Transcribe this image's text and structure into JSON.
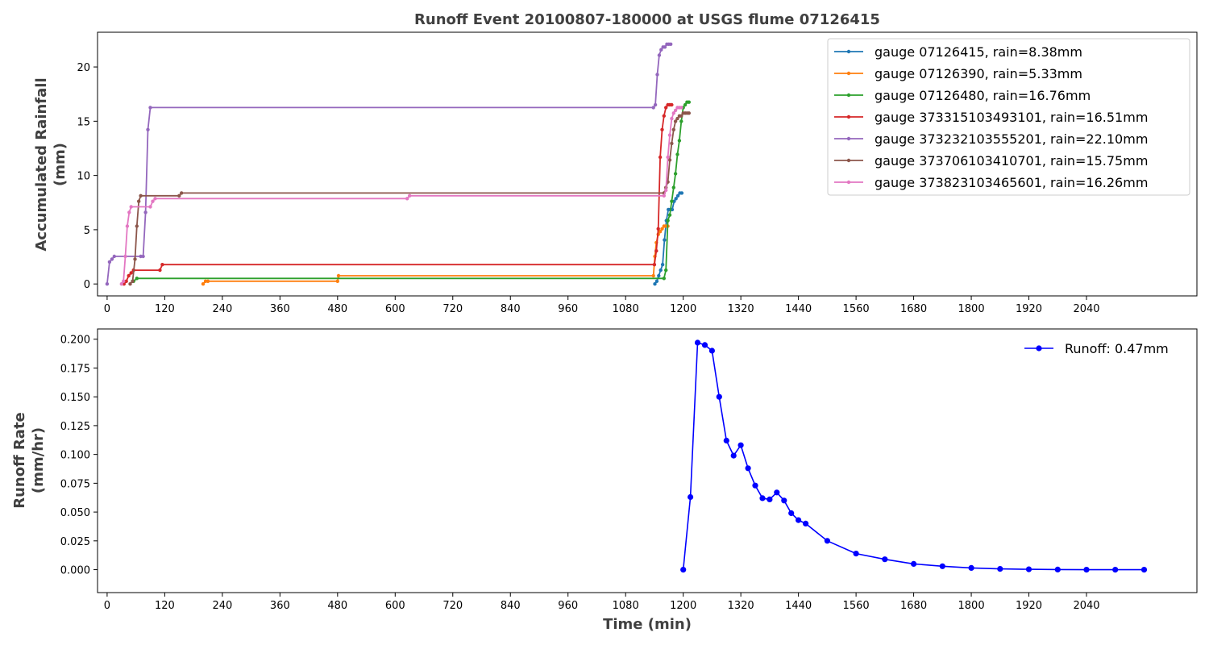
{
  "chart_data": [
    {
      "type": "line",
      "title": "Runoff Event 20100807-180000 at USGS flume 07126415",
      "ylabel_line1": "Accumulated Rainfall",
      "ylabel_line2": "(mm)",
      "xlim": [
        -20,
        2270
      ],
      "ylim": [
        -1.1,
        23.2
      ],
      "xticks": [
        0,
        120,
        240,
        360,
        480,
        600,
        720,
        840,
        960,
        1080,
        1200,
        1320,
        1440,
        1560,
        1680,
        1800,
        1920,
        2040
      ],
      "yticks": [
        0,
        5,
        10,
        15,
        20
      ],
      "legend_position": "top-right",
      "series": [
        {
          "name": "gauge 07126415, rain=8.38mm",
          "color": "#1f77b4",
          "points": [
            [
              1141,
              0
            ],
            [
              1145,
              0.25
            ],
            [
              1149,
              0.76
            ],
            [
              1153,
              1.27
            ],
            [
              1157,
              1.78
            ],
            [
              1161,
              4.06
            ],
            [
              1165,
              5.84
            ],
            [
              1169,
              6.86
            ],
            [
              1173,
              6.86
            ],
            [
              1177,
              6.86
            ],
            [
              1181,
              7.62
            ],
            [
              1185,
              7.87
            ],
            [
              1189,
              8.13
            ],
            [
              1193,
              8.38
            ],
            [
              1197,
              8.38
            ]
          ]
        },
        {
          "name": "gauge 07126390, rain=5.33mm",
          "color": "#ff7f0e",
          "points": [
            [
              200,
              0
            ],
            [
              205,
              0.25
            ],
            [
              210,
              0.25
            ],
            [
              480,
              0.25
            ],
            [
              482,
              0.76
            ],
            [
              1138,
              0.76
            ],
            [
              1141,
              2.54
            ],
            [
              1144,
              3.81
            ],
            [
              1148,
              4.57
            ],
            [
              1152,
              4.83
            ],
            [
              1156,
              5.08
            ],
            [
              1160,
              5.33
            ],
            [
              1164,
              5.33
            ],
            [
              1168,
              5.33
            ]
          ]
        },
        {
          "name": "gauge 07126480, rain=16.76mm",
          "color": "#2ca02c",
          "points": [
            [
              55,
              0.25
            ],
            [
              62,
              0.51
            ],
            [
              1160,
              0.51
            ],
            [
              1164,
              1.27
            ],
            [
              1168,
              5.84
            ],
            [
              1172,
              6.35
            ],
            [
              1176,
              7.62
            ],
            [
              1180,
              8.89
            ],
            [
              1184,
              10.16
            ],
            [
              1188,
              11.94
            ],
            [
              1192,
              13.21
            ],
            [
              1196,
              14.99
            ],
            [
              1200,
              16.26
            ],
            [
              1204,
              16.51
            ],
            [
              1208,
              16.76
            ],
            [
              1212,
              16.76
            ]
          ]
        },
        {
          "name": "gauge 373315103493101, rain=16.51mm",
          "color": "#d62728",
          "points": [
            [
              35,
              0
            ],
            [
              40,
              0.25
            ],
            [
              45,
              0.76
            ],
            [
              50,
              1.02
            ],
            [
              55,
              1.27
            ],
            [
              110,
              1.27
            ],
            [
              115,
              1.78
            ],
            [
              1140,
              1.78
            ],
            [
              1144,
              3.05
            ],
            [
              1148,
              5.08
            ],
            [
              1152,
              11.68
            ],
            [
              1156,
              14.22
            ],
            [
              1160,
              15.49
            ],
            [
              1164,
              16.26
            ],
            [
              1168,
              16.51
            ],
            [
              1172,
              16.51
            ],
            [
              1176,
              16.51
            ]
          ]
        },
        {
          "name": "gauge 373232103555201, rain=22.10mm",
          "color": "#9467bd",
          "points": [
            [
              0,
              0
            ],
            [
              5,
              2.03
            ],
            [
              10,
              2.29
            ],
            [
              15,
              2.54
            ],
            [
              70,
              2.54
            ],
            [
              75,
              2.54
            ],
            [
              80,
              6.6
            ],
            [
              85,
              14.22
            ],
            [
              90,
              16.26
            ],
            [
              1138,
              16.26
            ],
            [
              1142,
              16.51
            ],
            [
              1146,
              19.3
            ],
            [
              1150,
              21.08
            ],
            [
              1154,
              21.59
            ],
            [
              1158,
              21.84
            ],
            [
              1162,
              21.84
            ],
            [
              1166,
              22.1
            ],
            [
              1170,
              22.1
            ],
            [
              1174,
              22.1
            ]
          ]
        },
        {
          "name": "gauge 373706103410701, rain=15.75mm",
          "color": "#8c564b",
          "points": [
            [
              48,
              0
            ],
            [
              53,
              0.25
            ],
            [
              58,
              2.29
            ],
            [
              62,
              5.33
            ],
            [
              66,
              7.62
            ],
            [
              70,
              8.13
            ],
            [
              150,
              8.13
            ],
            [
              155,
              8.38
            ],
            [
              1160,
              8.38
            ],
            [
              1164,
              8.89
            ],
            [
              1168,
              9.4
            ],
            [
              1172,
              11.43
            ],
            [
              1176,
              12.95
            ],
            [
              1180,
              14.22
            ],
            [
              1184,
              14.99
            ],
            [
              1188,
              15.24
            ],
            [
              1192,
              15.49
            ],
            [
              1196,
              15.49
            ],
            [
              1200,
              15.75
            ],
            [
              1204,
              15.75
            ],
            [
              1208,
              15.75
            ],
            [
              1212,
              15.75
            ]
          ]
        },
        {
          "name": "gauge 373823103465601, rain=16.26mm",
          "color": "#e377c2",
          "points": [
            [
              30,
              0
            ],
            [
              34,
              0.25
            ],
            [
              38,
              2.54
            ],
            [
              42,
              5.33
            ],
            [
              46,
              6.6
            ],
            [
              50,
              7.11
            ],
            [
              90,
              7.11
            ],
            [
              95,
              7.62
            ],
            [
              100,
              7.87
            ],
            [
              625,
              7.87
            ],
            [
              630,
              8.13
            ],
            [
              1160,
              8.13
            ],
            [
              1164,
              8.64
            ],
            [
              1168,
              11.68
            ],
            [
              1172,
              13.72
            ],
            [
              1176,
              15.24
            ],
            [
              1180,
              15.75
            ],
            [
              1184,
              16
            ],
            [
              1188,
              16.26
            ],
            [
              1192,
              16.26
            ],
            [
              1196,
              16.26
            ]
          ]
        }
      ]
    },
    {
      "type": "line",
      "xlabel": "Time (min)",
      "ylabel_line1": "Runoff Rate",
      "ylabel_line2": "(mm/hr)",
      "xlim": [
        -20,
        2270
      ],
      "ylim": [
        -0.0199,
        0.2089
      ],
      "xticks": [
        0,
        120,
        240,
        360,
        480,
        600,
        720,
        840,
        960,
        1080,
        1200,
        1320,
        1440,
        1560,
        1680,
        1800,
        1920,
        2040
      ],
      "yticks": [
        "0.000",
        "0.025",
        "0.050",
        "0.075",
        "0.100",
        "0.125",
        "0.150",
        "0.175",
        "0.200"
      ],
      "legend_position": "top-right",
      "series": [
        {
          "name": "Runoff: 0.47mm",
          "color": "#0000ff",
          "points": [
            [
              1200,
              0
            ],
            [
              1215,
              0.063
            ],
            [
              1230,
              0.197
            ],
            [
              1245,
              0.195
            ],
            [
              1260,
              0.19
            ],
            [
              1275,
              0.15
            ],
            [
              1290,
              0.112
            ],
            [
              1305,
              0.099
            ],
            [
              1320,
              0.108
            ],
            [
              1335,
              0.088
            ],
            [
              1350,
              0.073
            ],
            [
              1365,
              0.062
            ],
            [
              1380,
              0.061
            ],
            [
              1395,
              0.067
            ],
            [
              1410,
              0.06
            ],
            [
              1425,
              0.049
            ],
            [
              1440,
              0.043
            ],
            [
              1455,
              0.04
            ],
            [
              1500,
              0.025
            ],
            [
              1560,
              0.014
            ],
            [
              1620,
              0.009
            ],
            [
              1680,
              0.005
            ],
            [
              1740,
              0.003
            ],
            [
              1800,
              0.0015
            ],
            [
              1860,
              0.0007
            ],
            [
              1920,
              0.0003
            ],
            [
              1980,
              0.0001
            ],
            [
              2040,
              0
            ],
            [
              2100,
              0
            ],
            [
              2160,
              0
            ]
          ]
        }
      ]
    }
  ]
}
